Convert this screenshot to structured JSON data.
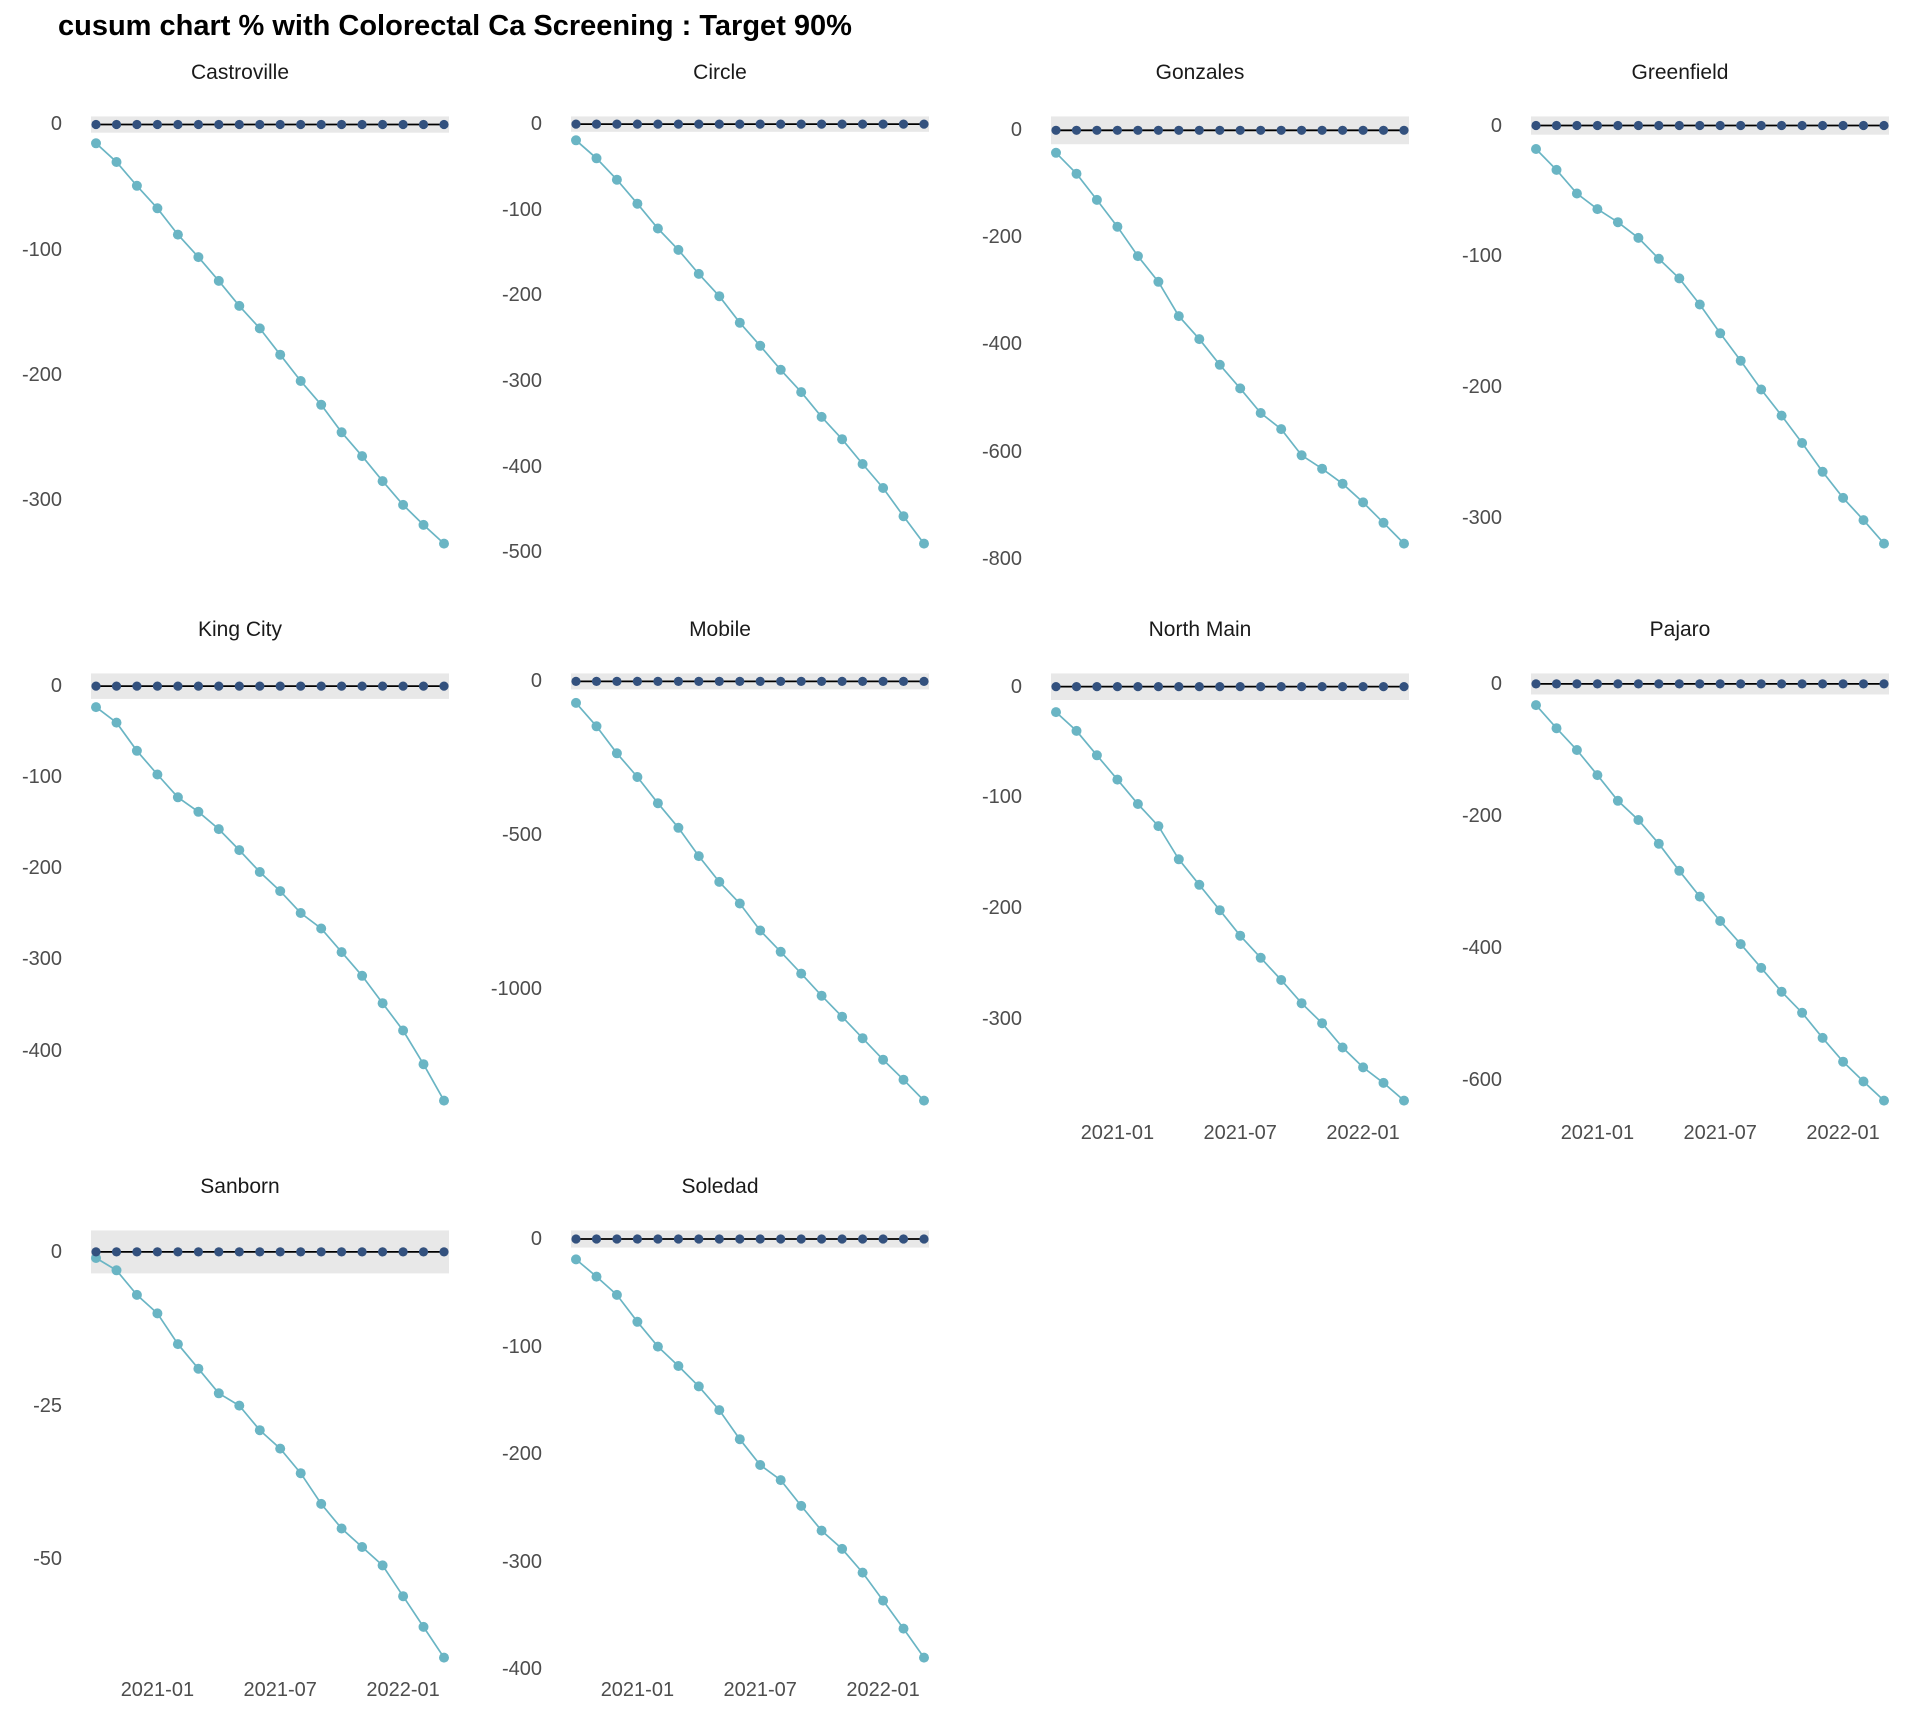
{
  "chart_data": {
    "type": "line",
    "title": "cusum chart % with Colorectal Ca Screening : Target 90%",
    "x": {
      "values": [
        "2020-10",
        "2020-11",
        "2020-12",
        "2021-01",
        "2021-02",
        "2021-03",
        "2021-04",
        "2021-05",
        "2021-06",
        "2021-07",
        "2021-08",
        "2021-09",
        "2021-10",
        "2021-11",
        "2021-12",
        "2022-01",
        "2022-02",
        "2022-03"
      ],
      "tick_labels": [
        "2021-01",
        "2021-07",
        "2022-01"
      ],
      "tick_indices": [
        3,
        9,
        15
      ]
    },
    "series_names": {
      "signal": "cusum",
      "reference": "target reference (0) with control band"
    },
    "facets": [
      {
        "name": "Castroville",
        "show_x_axis": false,
        "reference_value": 0,
        "band_halfwidth": 6.5,
        "y_ticks": [
          0,
          -100,
          -200,
          -300
        ],
        "cusum_values": [
          -15,
          -30,
          -49,
          -67,
          -88,
          -106,
          -125,
          -145,
          -163,
          -184,
          -205,
          -224,
          -246,
          -265,
          -285,
          -304,
          -320,
          -335
        ]
      },
      {
        "name": "Circle",
        "show_x_axis": false,
        "reference_value": 0,
        "band_halfwidth": 9,
        "y_ticks": [
          0,
          -100,
          -200,
          -300,
          -400,
          -500
        ],
        "cusum_values": [
          -19,
          -40,
          -65,
          -93,
          -122,
          -147,
          -175,
          -201,
          -232,
          -259,
          -287,
          -313,
          -342,
          -368,
          -397,
          -425,
          -458,
          -490
        ]
      },
      {
        "name": "Gonzales",
        "show_x_axis": false,
        "reference_value": 0,
        "band_halfwidth": 26,
        "y_ticks": [
          0,
          -200,
          -400,
          -600,
          -800
        ],
        "cusum_values": [
          -42,
          -81,
          -130,
          -180,
          -235,
          -283,
          -347,
          -390,
          -438,
          -482,
          -528,
          -558,
          -607,
          -632,
          -660,
          -695,
          -733,
          -772
        ]
      },
      {
        "name": "Greenfield",
        "show_x_axis": false,
        "reference_value": 0,
        "band_halfwidth": 7,
        "y_ticks": [
          0,
          -100,
          -200,
          -300
        ],
        "cusum_values": [
          -18,
          -34,
          -52,
          -64,
          -74,
          -86,
          -102,
          -117,
          -137,
          -159,
          -180,
          -202,
          -222,
          -243,
          -265,
          -285,
          -302,
          -320
        ]
      },
      {
        "name": "King City",
        "show_x_axis": false,
        "reference_value": 0,
        "band_halfwidth": 14,
        "y_ticks": [
          0,
          -100,
          -200,
          -300,
          -400
        ],
        "cusum_values": [
          -23,
          -40,
          -71,
          -97,
          -122,
          -138,
          -157,
          -180,
          -204,
          -225,
          -249,
          -266,
          -292,
          -318,
          -348,
          -378,
          -415,
          -455
        ]
      },
      {
        "name": "Mobile",
        "show_x_axis": false,
        "reference_value": 0,
        "band_halfwidth": 26,
        "y_ticks": [
          0,
          -500,
          -1000
        ],
        "cusum_values": [
          -70,
          -146,
          -234,
          -311,
          -396,
          -476,
          -568,
          -652,
          -722,
          -810,
          -879,
          -950,
          -1022,
          -1090,
          -1160,
          -1230,
          -1295,
          -1363
        ]
      },
      {
        "name": "North Main",
        "show_x_axis": true,
        "reference_value": 0,
        "band_halfwidth": 12,
        "y_ticks": [
          0,
          -100,
          -200,
          -300
        ],
        "cusum_values": [
          -23,
          -40,
          -62,
          -84,
          -106,
          -126,
          -156,
          -179,
          -202,
          -225,
          -245,
          -265,
          -286,
          -304,
          -326,
          -344,
          -358,
          -374
        ]
      },
      {
        "name": "Pajaro",
        "show_x_axis": true,
        "reference_value": 0,
        "band_halfwidth": 16,
        "y_ticks": [
          0,
          -200,
          -400,
          -600
        ],
        "cusum_values": [
          -32,
          -67,
          -100,
          -138,
          -177,
          -206,
          -242,
          -283,
          -322,
          -359,
          -394,
          -430,
          -466,
          -498,
          -536,
          -572,
          -602,
          -631
        ]
      },
      {
        "name": "Sanborn",
        "show_x_axis": true,
        "reference_value": 0,
        "band_halfwidth": 3.5,
        "y_ticks": [
          0,
          -25,
          -50
        ],
        "cusum_values": [
          -1,
          -3,
          -7,
          -10,
          -15,
          -19,
          -23,
          -25,
          -29,
          -32,
          -36,
          -41,
          -45,
          -48,
          -51,
          -56,
          -61,
          -66
        ]
      },
      {
        "name": "Soledad",
        "show_x_axis": true,
        "reference_value": 0,
        "band_halfwidth": 8,
        "y_ticks": [
          0,
          -100,
          -200,
          -300,
          -400
        ],
        "cusum_values": [
          -19,
          -35,
          -52,
          -77,
          -100,
          -118,
          -137,
          -159,
          -186,
          -210,
          -224,
          -248,
          -271,
          -288,
          -310,
          -336,
          -362,
          -389
        ]
      }
    ],
    "layout": {
      "grid_columns": 4,
      "gridlines": false,
      "legend_position": "none"
    }
  },
  "colors": {
    "signal_line": "#6ab5c4",
    "reference_point": "#33517e",
    "zero_line": "#000000",
    "control_band": "#e8e8e8",
    "tick_text": "#4d4d4d",
    "title_text": "#000000"
  }
}
